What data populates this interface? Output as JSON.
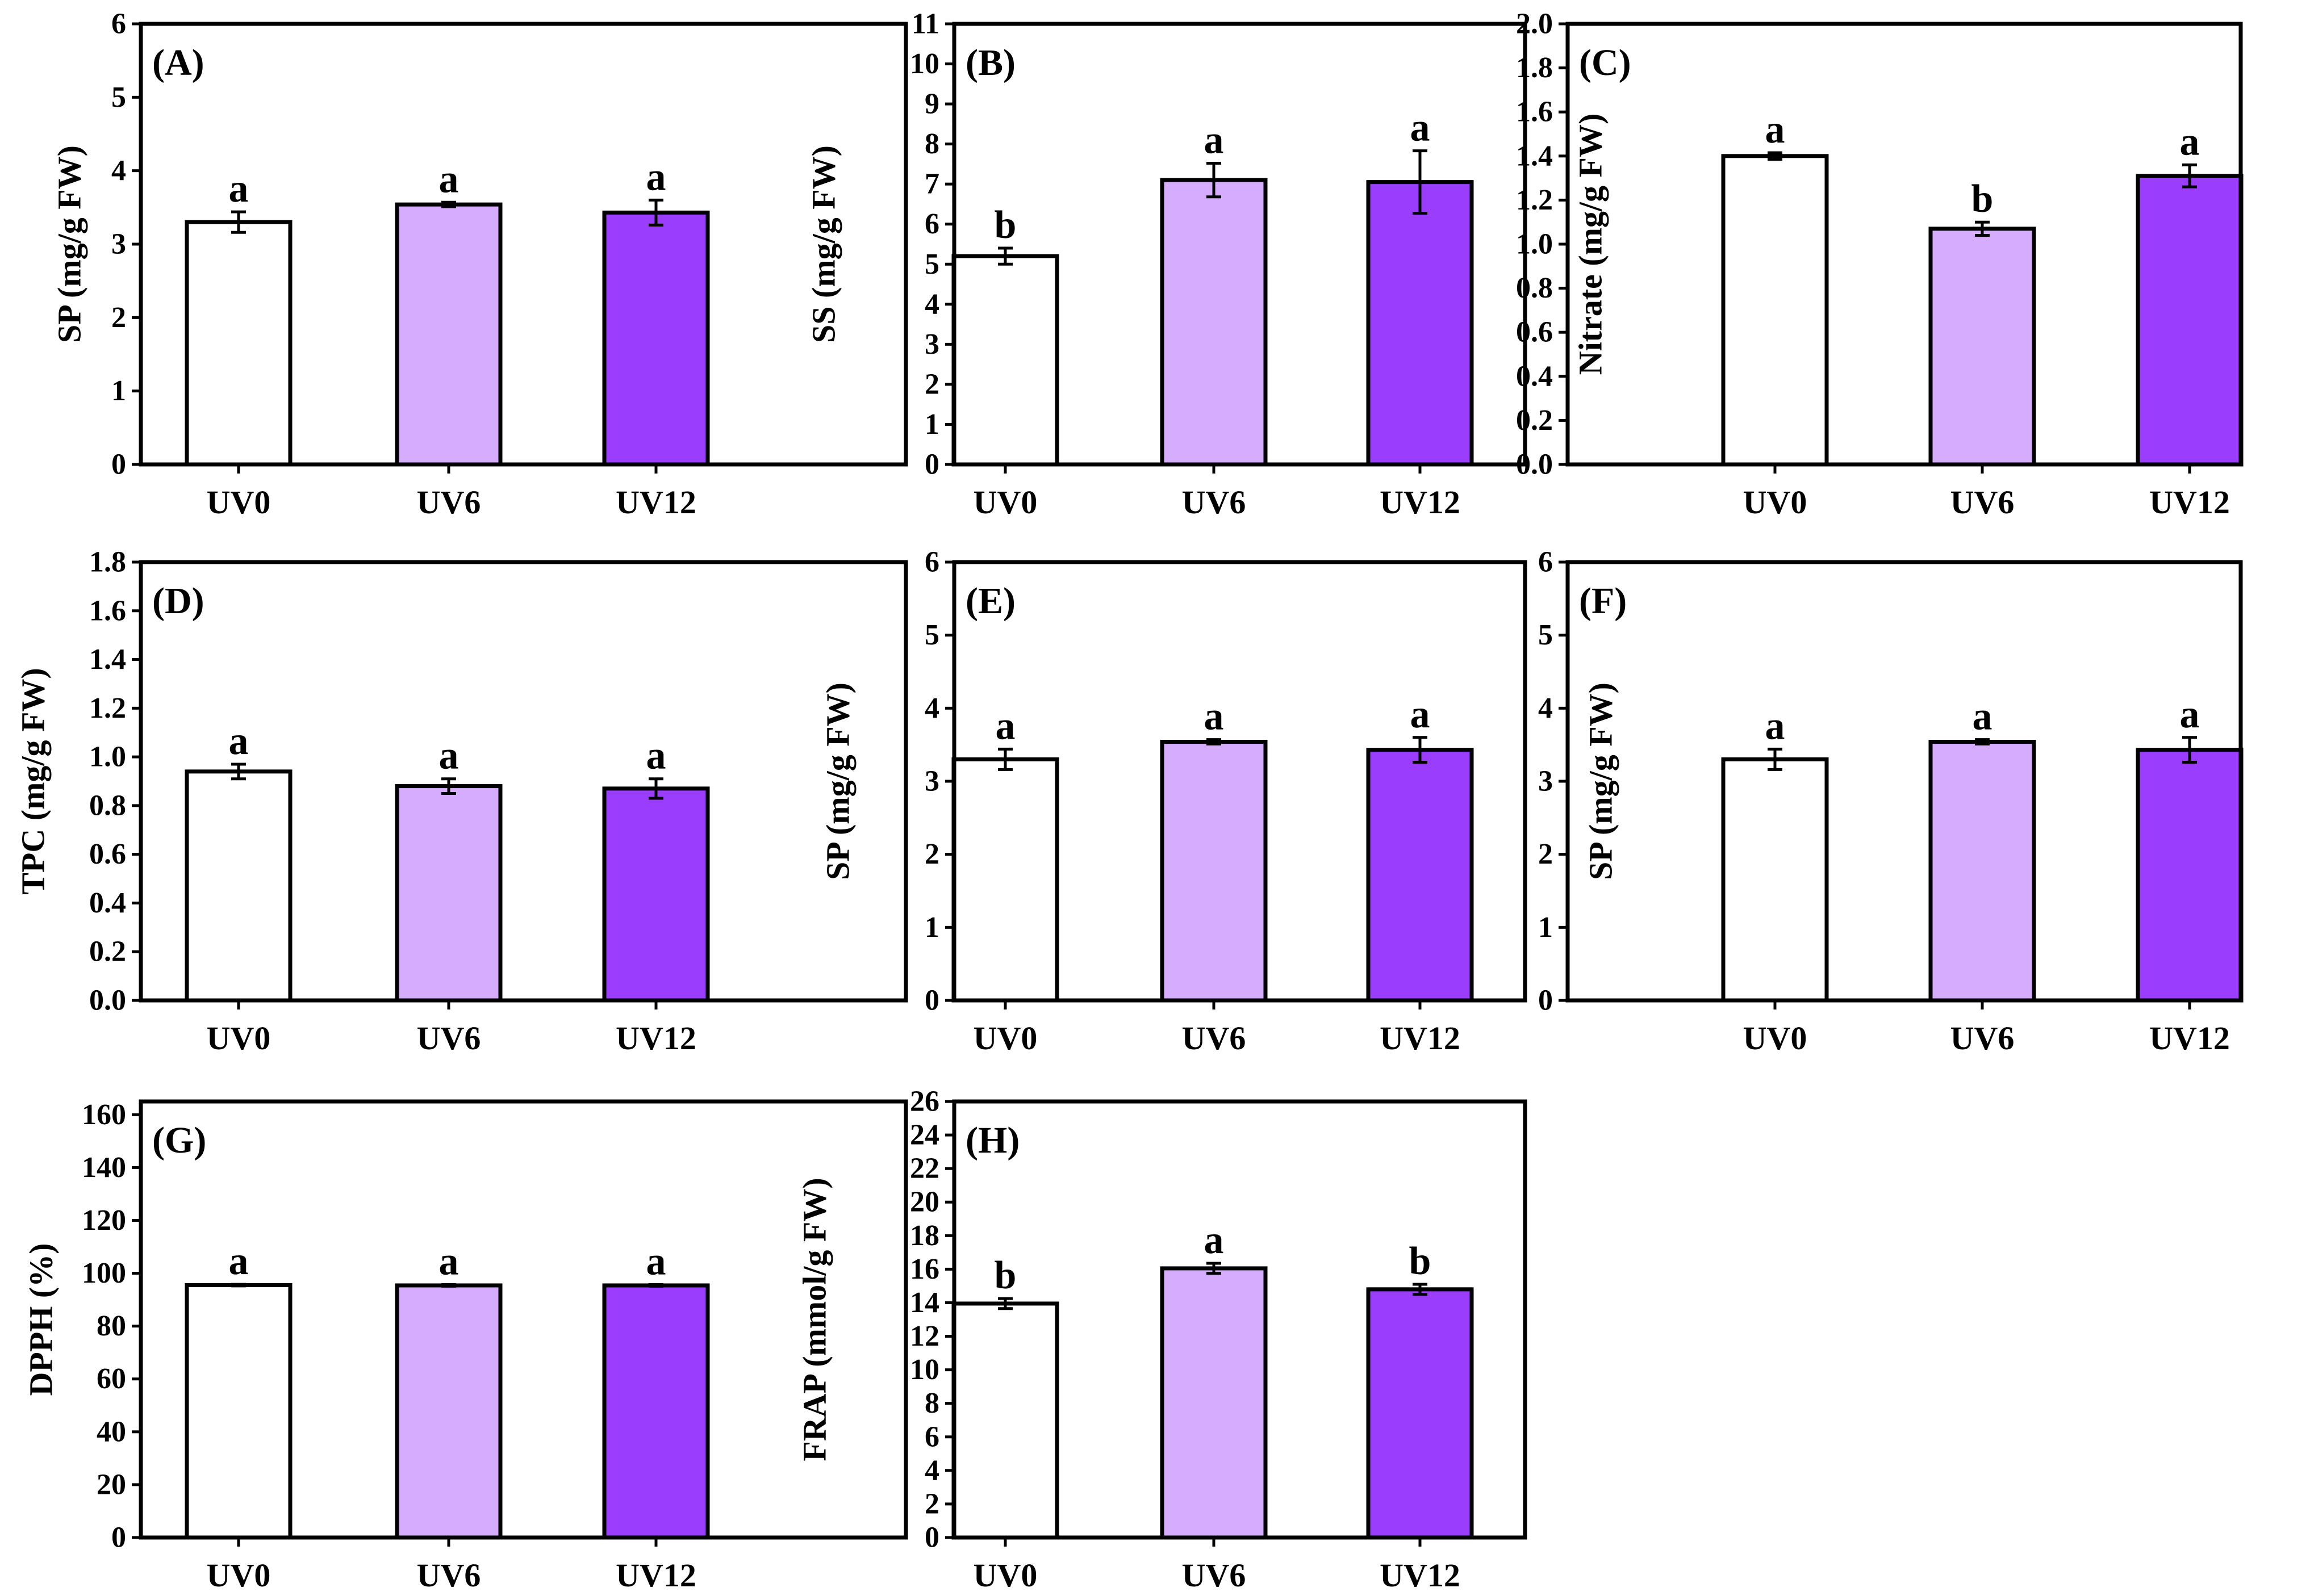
{
  "figure": {
    "bar_colors": [
      "#ffffff",
      "#d6adfe",
      "#9a3dfc"
    ],
    "edge_color": "#000000"
  },
  "chart_data": [
    {
      "type": "bar",
      "title": "(A)",
      "xlabel": "",
      "ylabel": "SP (mg/g FW)",
      "categories": [
        "UV0",
        "UV6",
        "UV12"
      ],
      "values": [
        3.3,
        3.54,
        3.43
      ],
      "errors": [
        0.14,
        0.03,
        0.17
      ],
      "significance": [
        "a",
        "a",
        "a"
      ],
      "ylim": [
        0,
        6
      ],
      "yticks": [
        0,
        1,
        2,
        3,
        4,
        5,
        6
      ],
      "ytick_labels": [
        "0",
        "1",
        "2",
        "3",
        "4",
        "5",
        "6"
      ]
    },
    {
      "type": "bar",
      "title": "(B)",
      "xlabel": "",
      "ylabel": "SS (mg/g FW)",
      "categories": [
        "UV0",
        "UV6",
        "UV12"
      ],
      "values": [
        5.2,
        7.1,
        7.05
      ],
      "errors": [
        0.2,
        0.42,
        0.78
      ],
      "significance": [
        "b",
        "a",
        "a"
      ],
      "ylim": [
        0,
        11
      ],
      "yticks": [
        0,
        1,
        2,
        3,
        4,
        5,
        6,
        7,
        8,
        9,
        10,
        11
      ],
      "ytick_labels": [
        "0",
        "1",
        "2",
        "3",
        "4",
        "5",
        "6",
        "7",
        "8",
        "9",
        "10",
        "11"
      ]
    },
    {
      "type": "bar",
      "title": "(C)",
      "xlabel": "",
      "ylabel": "Nitrate (mg/g FW)",
      "categories": [
        "UV0",
        "UV6",
        "UV12"
      ],
      "values": [
        1.4,
        1.07,
        1.31
      ],
      "errors": [
        0.015,
        0.03,
        0.05
      ],
      "significance": [
        "a",
        "b",
        "a"
      ],
      "ylim": [
        0,
        2.0
      ],
      "yticks": [
        0,
        0.2,
        0.4,
        0.6,
        0.8,
        1.0,
        1.2,
        1.4,
        1.6,
        1.8,
        2.0
      ],
      "ytick_labels": [
        "0.0",
        "0.2",
        "0.4",
        "0.6",
        "0.8",
        "1.0",
        "1.2",
        "1.4",
        "1.6",
        "1.8",
        "2.0"
      ]
    },
    {
      "type": "bar",
      "title": "(D)",
      "xlabel": "",
      "ylabel": "TPC (mg/g FW)",
      "categories": [
        "UV0",
        "UV6",
        "UV12"
      ],
      "values": [
        0.94,
        0.88,
        0.87
      ],
      "errors": [
        0.03,
        0.03,
        0.04
      ],
      "significance": [
        "a",
        "a",
        "a"
      ],
      "ylim": [
        0,
        1.8
      ],
      "yticks": [
        0,
        0.2,
        0.4,
        0.6,
        0.8,
        1.0,
        1.2,
        1.4,
        1.6,
        1.8
      ],
      "ytick_labels": [
        "0.0",
        "0.2",
        "0.4",
        "0.6",
        "0.8",
        "1.0",
        "1.2",
        "1.4",
        "1.6",
        "1.8"
      ]
    },
    {
      "type": "bar",
      "title": "(E)",
      "xlabel": "",
      "ylabel": "SP (mg/g FW)",
      "categories": [
        "UV0",
        "UV6",
        "UV12"
      ],
      "values": [
        3.3,
        3.54,
        3.43
      ],
      "errors": [
        0.14,
        0.03,
        0.17
      ],
      "significance": [
        "a",
        "a",
        "a"
      ],
      "ylim": [
        0,
        6
      ],
      "yticks": [
        0,
        1,
        2,
        3,
        4,
        5,
        6
      ],
      "ytick_labels": [
        "0",
        "1",
        "2",
        "3",
        "4",
        "5",
        "6"
      ]
    },
    {
      "type": "bar",
      "title": "(F)",
      "xlabel": "",
      "ylabel": "SP (mg/g FW)",
      "categories": [
        "UV0",
        "UV6",
        "UV12"
      ],
      "values": [
        3.3,
        3.54,
        3.43
      ],
      "errors": [
        0.14,
        0.03,
        0.17
      ],
      "significance": [
        "a",
        "a",
        "a"
      ],
      "ylim": [
        0,
        6
      ],
      "yticks": [
        0,
        1,
        2,
        3,
        4,
        5,
        6
      ],
      "ytick_labels": [
        "0",
        "1",
        "2",
        "3",
        "4",
        "5",
        "6"
      ]
    },
    {
      "type": "bar",
      "title": "(G)",
      "xlabel": "",
      "ylabel": "DPPH (%)",
      "categories": [
        "UV0",
        "UV6",
        "UV12"
      ],
      "values": [
        95.5,
        95.4,
        95.4
      ],
      "errors": [
        0.3,
        0.3,
        0.3
      ],
      "significance": [
        "a",
        "a",
        "a"
      ],
      "ylim": [
        0,
        165
      ],
      "yticks": [
        0,
        20,
        40,
        60,
        80,
        100,
        120,
        140,
        160
      ],
      "ytick_labels": [
        "0",
        "20",
        "40",
        "60",
        "80",
        "100",
        "120",
        "140",
        "160"
      ]
    },
    {
      "type": "bar",
      "title": "(H)",
      "xlabel": "",
      "ylabel": "FRAP (mmol/g FW)",
      "categories": [
        "UV0",
        "UV6",
        "UV12"
      ],
      "values": [
        13.95,
        16.05,
        14.8
      ],
      "errors": [
        0.3,
        0.3,
        0.3
      ],
      "significance": [
        "b",
        "a",
        "b"
      ],
      "ylim": [
        0,
        26
      ],
      "yticks": [
        0,
        2,
        4,
        6,
        8,
        10,
        12,
        14,
        16,
        18,
        20,
        22,
        24,
        26
      ],
      "ytick_labels": [
        "0",
        "2",
        "4",
        "6",
        "8",
        "10",
        "12",
        "14",
        "16",
        "18",
        "20",
        "22",
        "24",
        "26"
      ]
    }
  ]
}
